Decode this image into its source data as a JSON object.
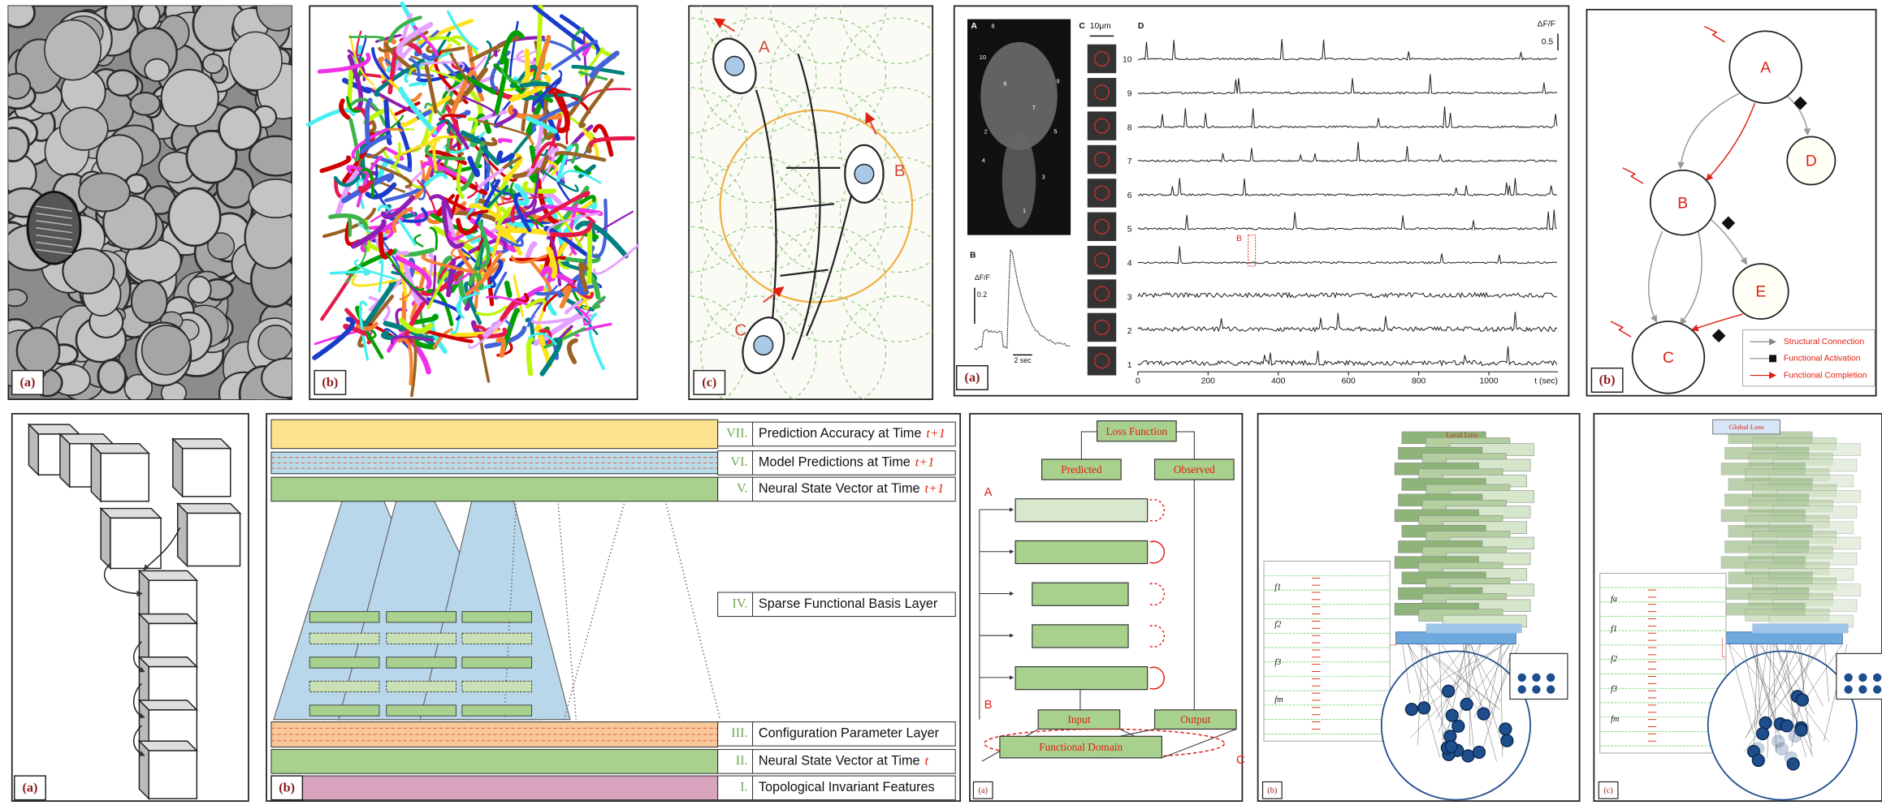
{
  "top_panels": {
    "em_image": {
      "label": "(a)"
    },
    "reconstruction": {
      "label": "(b)"
    },
    "cell_diagram": {
      "label": "(c)",
      "cells": [
        "A",
        "B",
        "C"
      ]
    },
    "calcium_imaging": {
      "label": "(a)",
      "panel_letters": [
        "A",
        "B",
        "C",
        "D"
      ],
      "brain_labels": [
        "8",
        "10",
        "6",
        "9",
        "2",
        "5",
        "4",
        "3",
        "1",
        "7"
      ],
      "scale_bar": "10μm",
      "dff": "ΔF/F",
      "dff_scale": 0.5,
      "trace_ids": [
        "10",
        "9",
        "8",
        "7",
        "6",
        "5",
        "4",
        "3",
        "2",
        "1"
      ],
      "x_ticks": [
        0,
        200,
        400,
        600,
        800,
        1000
      ],
      "x_label": "t (sec)",
      "inset_dff": "ΔF/F",
      "inset_scale": 0.2,
      "inset_time": "2 sec",
      "highlight": "B"
    },
    "graph": {
      "label": "(b)",
      "nodes": [
        "A",
        "B",
        "C",
        "D",
        "E"
      ],
      "legend": [
        "Structural Connection",
        "Functional Activation",
        "Functional Completion"
      ]
    }
  },
  "bottom_panels": {
    "cubes": {
      "label": "(a)"
    },
    "layers": {
      "label": "(b)",
      "rows": [
        {
          "numeral": "VII.",
          "text": "Prediction Accuracy at Time",
          "time": "t+1"
        },
        {
          "numeral": "VI.",
          "text": "Model Predictions at Time",
          "time": "t+1"
        },
        {
          "numeral": "V.",
          "text": "Neural State Vector at Time",
          "time": "t+1"
        },
        {
          "numeral": "IV.",
          "text": "Sparse Functional Basis Layer"
        },
        {
          "numeral": "III.",
          "text": "Configuration Parameter Layer"
        },
        {
          "numeral": "II.",
          "text": "Neural State Vector at Time",
          "time": "t"
        },
        {
          "numeral": "I.",
          "text": "Topological Invariant Features"
        }
      ]
    },
    "flow": {
      "label": "(a)",
      "loss": "Loss Function",
      "predicted": "Predicted",
      "observed": "Observed",
      "markers": [
        "A",
        "B",
        "C"
      ],
      "input": "Input",
      "output": "Output",
      "domain": "Functional Domain"
    },
    "network_local": {
      "label": "(b)",
      "loss": "Local Loss",
      "rows": [
        "f1",
        "f2",
        "f3",
        "fm"
      ]
    },
    "network_global": {
      "label": "(c)",
      "loss": "Global Loss",
      "rows": [
        "fa",
        "f1",
        "f2",
        "f3",
        "fm"
      ]
    }
  }
}
